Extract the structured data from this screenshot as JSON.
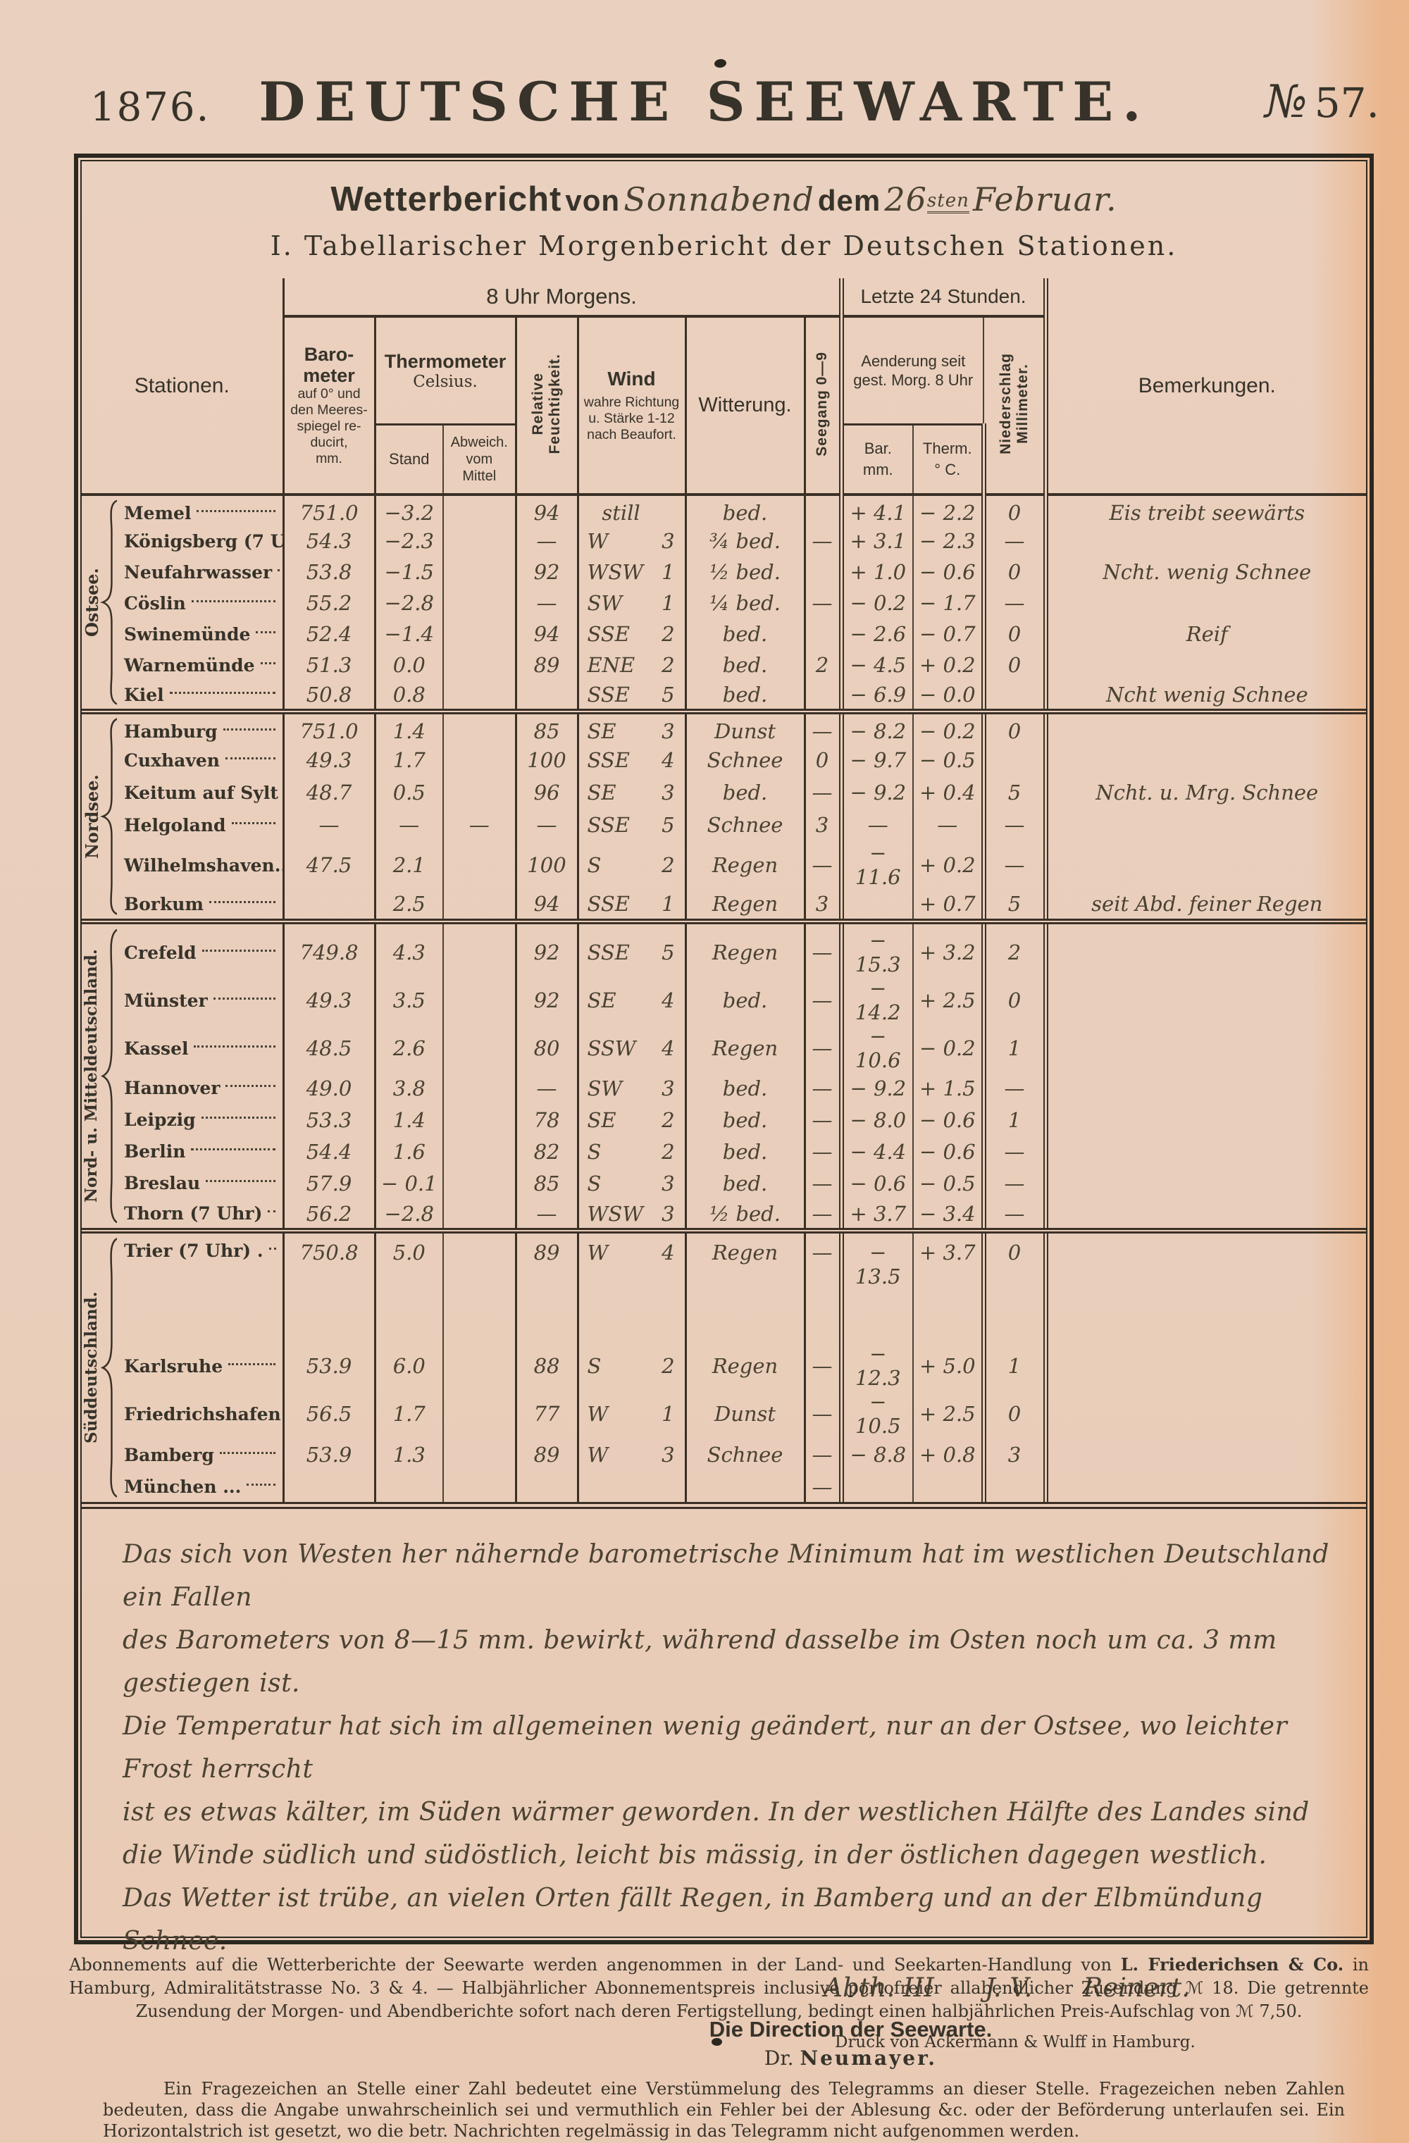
{
  "page": {
    "year": "1876.",
    "masthead": "DEUTSCHE SEEWARTE.",
    "issue_prefix": "№",
    "issue_number": "57.",
    "title": {
      "wetterbericht": "Wetterbericht",
      "von": "von",
      "day": "Sonnabend",
      "dem": "dem",
      "date": "26",
      "date_sup": "sten",
      "month": "Februar."
    },
    "subtitle": "I. Tabellarischer Morgenbericht der Deutschen Stationen."
  },
  "table": {
    "header": {
      "stationen": "Stationen.",
      "morgens": "8 Uhr Morgens.",
      "letzte": "Letzte 24 Stunden.",
      "bemerkungen": "Bemerkungen.",
      "baro_l1": "Baro-",
      "baro_l2": "meter",
      "baro_l3": "auf 0° und",
      "baro_l4": "den Meeres-",
      "baro_l5": "spiegel re-",
      "baro_l6": "ducirt,",
      "baro_l7": "mm.",
      "thermometer": "Thermometer",
      "celsius": "Celsius.",
      "stand": "Stand",
      "abw_l1": "Abweich.",
      "abw_l2": "vom",
      "abw_l3": "Mittel",
      "feu_l1": "Relative",
      "feu_l2": "Feuchtigkeit.",
      "wind_t": "Wind",
      "wind_l1": "wahre Richtung",
      "wind_l2": "u. Stärke 1-12",
      "wind_l3": "nach Beaufort.",
      "witterung": "Witterung.",
      "seegang": "Seegang  0—9",
      "aend_l1": "Aenderung seit",
      "aend_l2": "gest. Morg. 8 Uhr",
      "bar_l1": "Bar.",
      "bar_l2": "mm.",
      "therm_l1": "Therm.",
      "therm_l2": "° C.",
      "nie_l1": "Niederschlag",
      "nie_l2": "Millimeter."
    },
    "sections": [
      {
        "group": "Ostsee.",
        "rows": [
          {
            "st": "Memel",
            "bar": "751.0",
            "stand": "−3.2",
            "abw": "",
            "feu": "94",
            "wdir": "still",
            "wstr": "",
            "witt": "bed.",
            "see": "",
            "dbar": "+ 4.1",
            "dth": "− 2.2",
            "nie": "0",
            "bem": "Eis treibt seewärts"
          },
          {
            "st": "Königsberg (7 Uhr).",
            "bar": "54.3",
            "stand": "−2.3",
            "abw": "",
            "feu": "—",
            "wdir": "W",
            "wstr": "3",
            "witt": "¾ bed.",
            "see": "—",
            "dbar": "+ 3.1",
            "dth": "− 2.3",
            "nie": "—",
            "bem": ""
          },
          {
            "st": "Neufahrwasser",
            "bar": "53.8",
            "stand": "−1.5",
            "abw": "",
            "feu": "92",
            "wdir": "WSW",
            "wstr": "1",
            "witt": "½ bed.",
            "see": "",
            "dbar": "+ 1.0",
            "dth": "− 0.6",
            "nie": "0",
            "bem": "Ncht. wenig Schnee"
          },
          {
            "st": "Cöslin",
            "bar": "55.2",
            "stand": "−2.8",
            "abw": "",
            "feu": "—",
            "wdir": "SW",
            "wstr": "1",
            "witt": "¼ bed.",
            "see": "—",
            "dbar": "− 0.2",
            "dth": "− 1.7",
            "nie": "—",
            "bem": ""
          },
          {
            "st": "Swinemünde",
            "bar": "52.4",
            "stand": "−1.4",
            "abw": "",
            "feu": "94",
            "wdir": "SSE",
            "wstr": "2",
            "witt": "bed.",
            "see": "",
            "dbar": "− 2.6",
            "dth": "− 0.7",
            "nie": "0",
            "bem": "Reif"
          },
          {
            "st": "Warnemünde",
            "bar": "51.3",
            "stand": "0.0",
            "abw": "",
            "feu": "89",
            "wdir": "ENE",
            "wstr": "2",
            "witt": "bed.",
            "see": "2",
            "dbar": "− 4.5",
            "dth": "+ 0.2",
            "nie": "0",
            "bem": ""
          },
          {
            "st": "Kiel",
            "bar": "50.8",
            "stand": "0.8",
            "abw": "",
            "feu": "",
            "wdir": "SSE",
            "wstr": "5",
            "witt": "bed.",
            "see": "",
            "dbar": "− 6.9",
            "dth": "− 0.0",
            "nie": "",
            "bem": "Ncht wenig Schnee"
          }
        ]
      },
      {
        "group": "Nordsee.",
        "rows": [
          {
            "st": "Hamburg",
            "bar": "751.0",
            "stand": "1.4",
            "abw": "",
            "feu": "85",
            "wdir": "SE",
            "wstr": "3",
            "witt": "Dunst",
            "see": "—",
            "dbar": "− 8.2",
            "dth": "− 0.2",
            "nie": "0",
            "bem": ""
          },
          {
            "st": "Cuxhaven",
            "bar": "49.3",
            "stand": "1.7",
            "abw": "",
            "feu": "100",
            "wdir": "SSE",
            "wstr": "4",
            "witt": "Schnee",
            "see": "0",
            "dbar": "− 9.7",
            "dth": "− 0.5",
            "nie": "",
            "bem": ""
          },
          {
            "st": "Keitum auf Sylt .",
            "bar": "48.7",
            "stand": "0.5",
            "abw": "",
            "feu": "96",
            "wdir": "SE",
            "wstr": "3",
            "witt": "bed.",
            "see": "—",
            "dbar": "− 9.2",
            "dth": "+ 0.4",
            "nie": "5",
            "bem": "Ncht. u. Mrg. Schnee"
          },
          {
            "st": "Helgoland",
            "bar": "—",
            "stand": "—",
            "abw": "—",
            "feu": "—",
            "wdir": "SSE",
            "wstr": "5",
            "witt": "Schnee",
            "see": "3",
            "dbar": "—",
            "dth": "—",
            "nie": "—",
            "bem": ""
          },
          {
            "st": "Wilhelmshaven..",
            "bar": "47.5",
            "stand": "2.1",
            "abw": "",
            "feu": "100",
            "wdir": "S",
            "wstr": "2",
            "witt": "Regen",
            "see": "—",
            "dbar": "− 11.6",
            "dth": "+ 0.2",
            "nie": "—",
            "bem": ""
          },
          {
            "st": "Borkum",
            "bar": "",
            "stand": "2.5",
            "abw": "",
            "feu": "94",
            "wdir": "SSE",
            "wstr": "1",
            "witt": "Regen",
            "see": "3",
            "dbar": "",
            "dth": "+ 0.7",
            "nie": "5",
            "bem": "seit Abd. feiner Regen"
          }
        ]
      },
      {
        "group": "Nord- u. Mitteldeutschland.",
        "rows": [
          {
            "st": "Crefeld",
            "bar": "749.8",
            "stand": "4.3",
            "abw": "",
            "feu": "92",
            "wdir": "SSE",
            "wstr": "5",
            "witt": "Regen",
            "see": "—",
            "dbar": "− 15.3",
            "dth": "+ 3.2",
            "nie": "2",
            "bem": ""
          },
          {
            "st": "Münster",
            "bar": "49.3",
            "stand": "3.5",
            "abw": "",
            "feu": "92",
            "wdir": "SE",
            "wstr": "4",
            "witt": "bed.",
            "see": "—",
            "dbar": "− 14.2",
            "dth": "+ 2.5",
            "nie": "0",
            "bem": ""
          },
          {
            "st": "Kassel",
            "bar": "48.5",
            "stand": "2.6",
            "abw": "",
            "feu": "80",
            "wdir": "SSW",
            "wstr": "4",
            "witt": "Regen",
            "see": "—",
            "dbar": "− 10.6",
            "dth": "− 0.2",
            "nie": "1",
            "bem": ""
          },
          {
            "st": "Hannover",
            "bar": "49.0",
            "stand": "3.8",
            "abw": "",
            "feu": "—",
            "wdir": "SW",
            "wstr": "3",
            "witt": "bed.",
            "see": "—",
            "dbar": "− 9.2",
            "dth": "+ 1.5",
            "nie": "—",
            "bem": ""
          },
          {
            "st": "Leipzig",
            "bar": "53.3",
            "stand": "1.4",
            "abw": "",
            "feu": "78",
            "wdir": "SE",
            "wstr": "2",
            "witt": "bed.",
            "see": "—",
            "dbar": "− 8.0",
            "dth": "− 0.6",
            "nie": "1",
            "bem": ""
          },
          {
            "st": "Berlin",
            "bar": "54.4",
            "stand": "1.6",
            "abw": "",
            "feu": "82",
            "wdir": "S",
            "wstr": "2",
            "witt": "bed.",
            "see": "—",
            "dbar": "− 4.4",
            "dth": "− 0.6",
            "nie": "—",
            "bem": ""
          },
          {
            "st": "Breslau",
            "bar": "57.9",
            "stand": "− 0.1",
            "abw": "",
            "feu": "85",
            "wdir": "S",
            "wstr": "3",
            "witt": "bed.",
            "see": "—",
            "dbar": "− 0.6",
            "dth": "− 0.5",
            "nie": "—",
            "bem": ""
          },
          {
            "st": "Thorn (7 Uhr)",
            "bar": "56.2",
            "stand": "−2.8",
            "abw": "",
            "feu": "—",
            "wdir": "WSW",
            "wstr": "3",
            "witt": "½ bed.",
            "see": "—",
            "dbar": "+ 3.7",
            "dth": "− 3.4",
            "nie": "—",
            "bem": ""
          }
        ]
      },
      {
        "group": "Süddeutschland.",
        "rows": [
          {
            "st": "Trier (7 Uhr) .",
            "bar": "750.8",
            "stand": "5.0",
            "abw": "",
            "feu": "89",
            "wdir": "W",
            "wstr": "4",
            "witt": "Regen",
            "see": "—",
            "dbar": "− 13.5",
            "dth": "+ 3.7",
            "nie": "0",
            "bem": ""
          },
          {
            "st": "Karlsruhe",
            "bar": "53.9",
            "stand": "6.0",
            "abw": "",
            "feu": "88",
            "wdir": "S",
            "wstr": "2",
            "witt": "Regen",
            "see": "—",
            "dbar": "− 12.3",
            "dth": "+ 5.0",
            "nie": "1",
            "bem": ""
          },
          {
            "st": "Friedrichshafen",
            "bar": "56.5",
            "stand": "1.7",
            "abw": "",
            "feu": "77",
            "wdir": "W",
            "wstr": "1",
            "witt": "Dunst",
            "see": "—",
            "dbar": "− 10.5",
            "dth": "+ 2.5",
            "nie": "0",
            "bem": ""
          },
          {
            "st": "Bamberg",
            "bar": "53.9",
            "stand": "1.3",
            "abw": "",
            "feu": "89",
            "wdir": "W",
            "wstr": "3",
            "witt": "Schnee",
            "see": "—",
            "dbar": "− 8.8",
            "dth": "+ 0.8",
            "nie": "3",
            "bem": ""
          },
          {
            "st": "München ...",
            "bar": "",
            "stand": "",
            "abw": "",
            "feu": "",
            "wdir": "",
            "wstr": "",
            "witt": "",
            "see": "—",
            "dbar": "",
            "dth": "",
            "nie": "",
            "bem": ""
          }
        ]
      }
    ]
  },
  "summary": {
    "lines": [
      "Das sich von Westen her nähernde barometrische Minimum hat im westlichen Deutschland ein Fallen",
      "des Barometers von 8—15 mm. bewirkt, während dasselbe im Osten noch um ca. 3 mm gestiegen ist.",
      "Die Temperatur hat sich im allgemeinen wenig geändert, nur an der Ostsee, wo leichter Frost herrscht",
      "ist es etwas kälter, im Süden wärmer geworden. In der westlichen Hälfte des Landes sind",
      "die Winde südlich und südöstlich, leicht bis mässig, in der östlichen dagegen westlich.",
      "Das Wetter ist trübe, an vielen Orten fällt Regen, in Bamberg und an der Elbmündung",
      "Schnee."
    ],
    "sig_abth": "Abth. III",
    "sig_jv": "J. V.",
    "sig_name": "Reinert."
  },
  "direction": {
    "line": "Die Direction der Seewarte.",
    "dr": "Dr.",
    "name": "Neumayer."
  },
  "footnote": {
    "text": "Ein Fragezeichen an Stelle einer Zahl bedeutet eine Verstümmelung des Telegramms an dieser Stelle. Fragezeichen neben Zahlen bedeuten, dass die Angabe unwahrscheinlich sei und vermuthlich ein Fehler bei der Ablesung &c. oder der Beförderung unterlaufen sei. Ein Horizontalstrich ist gesetzt, wo die betr. Nachrichten regelmässig in das Telegramm nicht aufgenommen werden."
  },
  "footer": {
    "pre": "Abonnements auf die Wetterberichte der Seewarte werden angenommen in der Land- und Seekarten-Handlung von ",
    "bold": "L. Friederichsen & Co.",
    "post": " in Hamburg, Admiralitätstrasse No. 3 & 4. — Halbjährlicher Abonnementspreis inclusive portofreier allabendlicher Zusendung ℳ 18. Die getrennte Zusendung der Morgen- und Abendberichte sofort nach deren Fertigstellung, bedingt einen halbjährlichen Preis-Aufschlag von ℳ 7,50.",
    "druck": "Druck von Ackermann & Wulff in Hamburg."
  }
}
